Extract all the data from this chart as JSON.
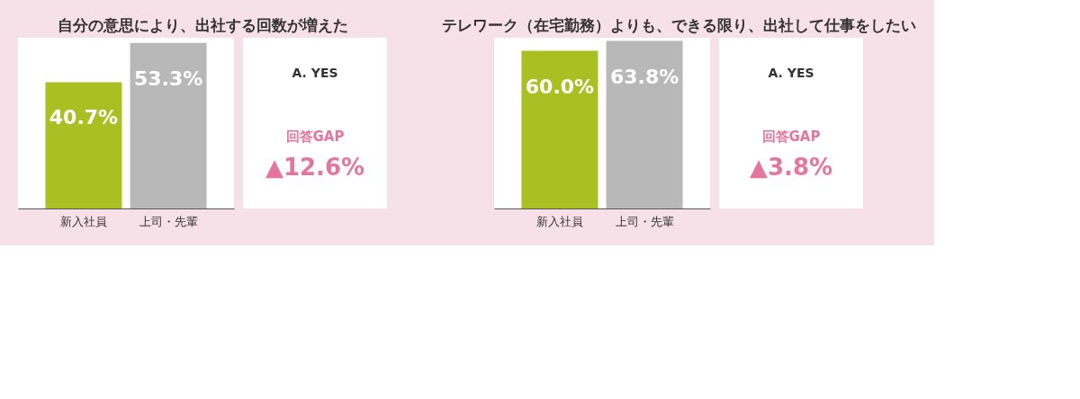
{
  "chart_data": [
    {
      "type": "bar",
      "title": "自分の意思により、出社する回数が増えた",
      "categories": [
        "新入社員",
        "上司・先輩"
      ],
      "values": [
        40.7,
        53.3
      ],
      "colors": [
        "#a9c023",
        "#b8b8b8"
      ],
      "value_labels": [
        "40.7%",
        "53.3%"
      ],
      "annotations": [
        "A. YES",
        "回答GAP",
        "▲12.6%"
      ]
    },
    {
      "type": "bar",
      "title": "テレワーク（在宅勤務）よりも、できる限り、出社して仕事をしたい",
      "categories": [
        "新入社員",
        "上司・先輩"
      ],
      "values": [
        60.0,
        63.8
      ],
      "colors": [
        "#a9c023",
        "#b8b8b8"
      ],
      "value_labels": [
        "60.0%",
        "63.8%"
      ],
      "annotations": [
        "A. YES",
        "回答GAP",
        "▲3.8%"
      ]
    }
  ]
}
